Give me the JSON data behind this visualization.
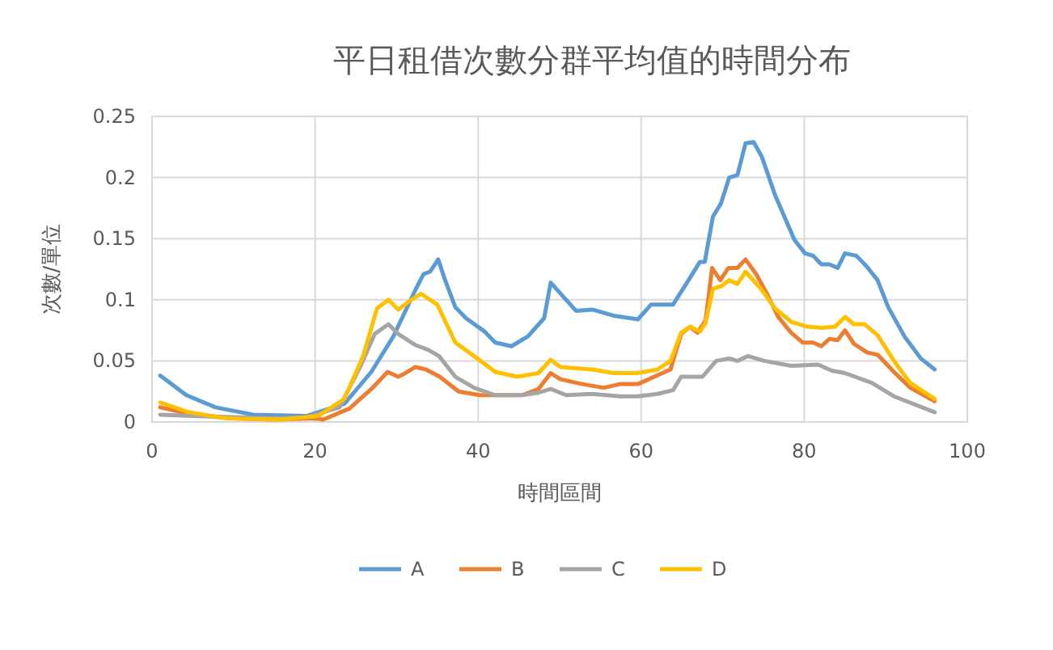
{
  "chart_data": {
    "type": "line",
    "title": "平日租借次數分群平均值的時間分布",
    "xlabel": "時間區間",
    "ylabel": "次數/單位",
    "xlim": [
      0,
      100
    ],
    "xticks": [
      0,
      20,
      40,
      60,
      80,
      100
    ],
    "ylim": [
      0,
      0.25
    ],
    "yticks": [
      0,
      0.05,
      0.1,
      0.15,
      0.2,
      0.25
    ],
    "grid": true,
    "legend": "bottom",
    "line_style": "solid",
    "series": [
      {
        "name": "A",
        "color": "#5b9bd5",
        "x": [
          1,
          4.2,
          7.8,
          12.4,
          19,
          23.6,
          26.9,
          29.6,
          32.3,
          33.3,
          34.1,
          35.1,
          35.9,
          37.2,
          38.5,
          40.8,
          42.1,
          44.1,
          46.1,
          48.1,
          48.9,
          52,
          54,
          56.6,
          59.6,
          61.2,
          63.9,
          65.9,
          67.2,
          67.8,
          68.8,
          69.8,
          70.8,
          71.8,
          72.8,
          73.8,
          74.8,
          76.4,
          78.8,
          80.1,
          81.1,
          82.1,
          83.1,
          84.1,
          85,
          86.4,
          87.7,
          89,
          90.3,
          92.3,
          94.3,
          96
        ],
        "values": [
          0.038,
          0.022,
          0.012,
          0.006,
          0.005,
          0.015,
          0.041,
          0.07,
          0.108,
          0.121,
          0.123,
          0.133,
          0.117,
          0.094,
          0.085,
          0.074,
          0.065,
          0.062,
          0.07,
          0.085,
          0.114,
          0.091,
          0.092,
          0.087,
          0.084,
          0.096,
          0.096,
          0.117,
          0.131,
          0.131,
          0.168,
          0.179,
          0.2,
          0.202,
          0.228,
          0.229,
          0.217,
          0.186,
          0.149,
          0.138,
          0.136,
          0.129,
          0.129,
          0.126,
          0.138,
          0.136,
          0.127,
          0.116,
          0.094,
          0.07,
          0.052,
          0.043
        ]
      },
      {
        "name": "B",
        "color": "#ed7d31",
        "x": [
          1,
          5,
          10,
          15,
          20,
          21,
          24.2,
          26.9,
          28.9,
          30.2,
          30.8,
          32.3,
          33.6,
          35.3,
          37.6,
          40.2,
          42.8,
          45.4,
          47.4,
          48.9,
          50.1,
          52.8,
          55.4,
          57.4,
          59.6,
          61.6,
          63.6,
          64.9,
          66,
          66.9,
          67.9,
          68.7,
          69.7,
          70.7,
          71.8,
          72.8,
          74.1,
          75.5,
          76.8,
          78.4,
          79.8,
          81.1,
          82.1,
          83.1,
          84.1,
          85,
          86.1,
          87.7,
          89,
          91,
          93,
          96
        ],
        "values": [
          0.012,
          0.006,
          0.003,
          0.002,
          0.003,
          0.002,
          0.011,
          0.027,
          0.041,
          0.037,
          0.039,
          0.045,
          0.043,
          0.037,
          0.025,
          0.022,
          0.022,
          0.022,
          0.027,
          0.04,
          0.035,
          0.031,
          0.028,
          0.031,
          0.031,
          0.037,
          0.043,
          0.072,
          0.078,
          0.073,
          0.083,
          0.126,
          0.116,
          0.126,
          0.126,
          0.133,
          0.121,
          0.104,
          0.086,
          0.073,
          0.065,
          0.065,
          0.062,
          0.068,
          0.067,
          0.075,
          0.064,
          0.057,
          0.055,
          0.041,
          0.028,
          0.017
        ]
      },
      {
        "name": "C",
        "color": "#a5a5a5",
        "x": [
          1,
          5,
          10,
          15,
          19,
          23,
          25.6,
          27.3,
          29,
          30.2,
          32.3,
          33.9,
          35.2,
          37.2,
          39.5,
          42.1,
          45.4,
          47.4,
          48.9,
          50.8,
          54,
          57.4,
          59.6,
          62,
          63.9,
          64.9,
          67.5,
          69.2,
          70.8,
          71.8,
          73.1,
          75.1,
          78.4,
          81.7,
          83.4,
          85,
          88.3,
          91,
          96
        ],
        "values": [
          0.006,
          0.005,
          0.004,
          0.003,
          0.004,
          0.012,
          0.046,
          0.072,
          0.08,
          0.072,
          0.063,
          0.059,
          0.054,
          0.037,
          0.028,
          0.022,
          0.022,
          0.024,
          0.027,
          0.022,
          0.023,
          0.021,
          0.021,
          0.023,
          0.026,
          0.037,
          0.037,
          0.05,
          0.052,
          0.05,
          0.054,
          0.05,
          0.046,
          0.047,
          0.042,
          0.04,
          0.032,
          0.021,
          0.008
        ]
      },
      {
        "name": "D",
        "color": "#ffc000",
        "x": [
          1,
          4.5,
          9.1,
          15.7,
          20.4,
          23.6,
          25.9,
          27.6,
          29,
          30.2,
          31.6,
          33,
          35,
          37.2,
          39.5,
          42.1,
          44.8,
          47.4,
          48.9,
          50.1,
          54,
          56.6,
          59.6,
          62,
          63.6,
          64.9,
          66,
          67.2,
          67.9,
          68.8,
          69.8,
          70.8,
          71.8,
          72.8,
          74.8,
          76.4,
          78.4,
          80.4,
          82.1,
          83.8,
          85,
          86.1,
          87.4,
          89,
          91,
          93,
          96
        ],
        "values": [
          0.016,
          0.008,
          0.003,
          0.002,
          0.005,
          0.019,
          0.054,
          0.093,
          0.1,
          0.092,
          0.099,
          0.105,
          0.096,
          0.065,
          0.054,
          0.041,
          0.037,
          0.04,
          0.051,
          0.045,
          0.043,
          0.04,
          0.04,
          0.043,
          0.05,
          0.073,
          0.078,
          0.074,
          0.081,
          0.109,
          0.111,
          0.116,
          0.113,
          0.123,
          0.108,
          0.093,
          0.082,
          0.078,
          0.077,
          0.078,
          0.086,
          0.08,
          0.08,
          0.071,
          0.05,
          0.032,
          0.019
        ]
      }
    ]
  }
}
